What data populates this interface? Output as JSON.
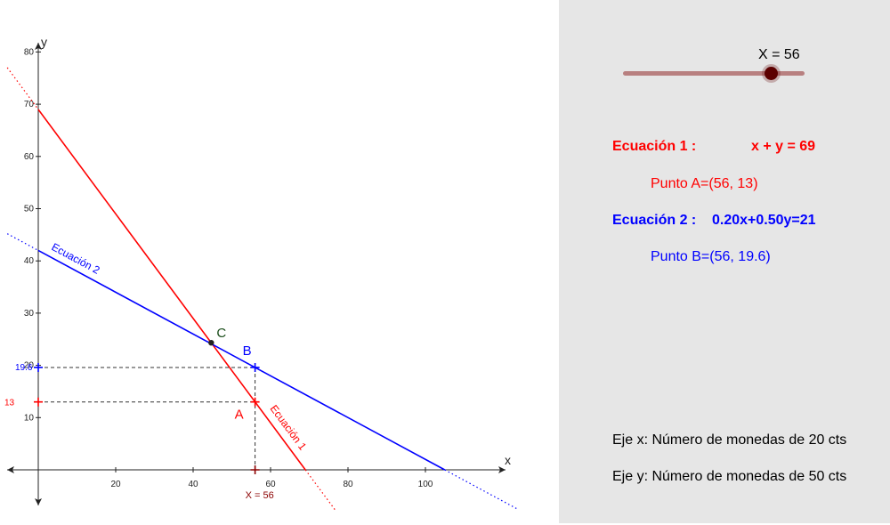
{
  "colors": {
    "red": "#ff0000",
    "blue": "#0000ff",
    "point_c": "#222222",
    "panel_bg": "#e6e6e6"
  },
  "chart_data": {
    "type": "line",
    "title": "",
    "xlabel": "x",
    "ylabel": "y",
    "xlim": [
      -8,
      125
    ],
    "ylim": [
      -9,
      82
    ],
    "x_ticks": [
      20,
      40,
      60,
      80,
      100
    ],
    "y_ticks": [
      10,
      20,
      30,
      40,
      50,
      60,
      70,
      80
    ],
    "grid": false,
    "series": [
      {
        "name": "Ecuación 1",
        "equation": "x + y = 69",
        "color": "#ff0000",
        "x": [
          -8,
          77
        ],
        "y": [
          77,
          -8
        ]
      },
      {
        "name": "Ecuación 2",
        "equation": "0.20x + 0.50y = 21",
        "color": "#0000ff",
        "x": [
          -8,
          124
        ],
        "y": [
          45.2,
          -7.6
        ]
      }
    ],
    "points": [
      {
        "label": "A",
        "x": 56,
        "y": 13
      },
      {
        "label": "B",
        "x": 56,
        "y": 19.6
      },
      {
        "label": "C",
        "x": 44.67,
        "y": 24.33
      }
    ],
    "marker_labels": {
      "x_value": "X = 56",
      "y_a": "13",
      "y_b": "19.6"
    }
  },
  "slider": {
    "label": "X = 56",
    "value": 56,
    "min": 0,
    "max": 69
  },
  "panel": {
    "eq1_label": "Ecuación 1 :",
    "eq1": "x + y = 69",
    "point_a": "Punto A=(56, 13)",
    "eq2_label": "Ecuación 2 :",
    "eq2": "0.20x+0.50y=21",
    "point_b": "Punto B=(56, 19.6)",
    "axis_x_desc": "Eje x: Número de monedas de 20 cts",
    "axis_y_desc": "Eje y: Número de monedas de 50 cts"
  }
}
